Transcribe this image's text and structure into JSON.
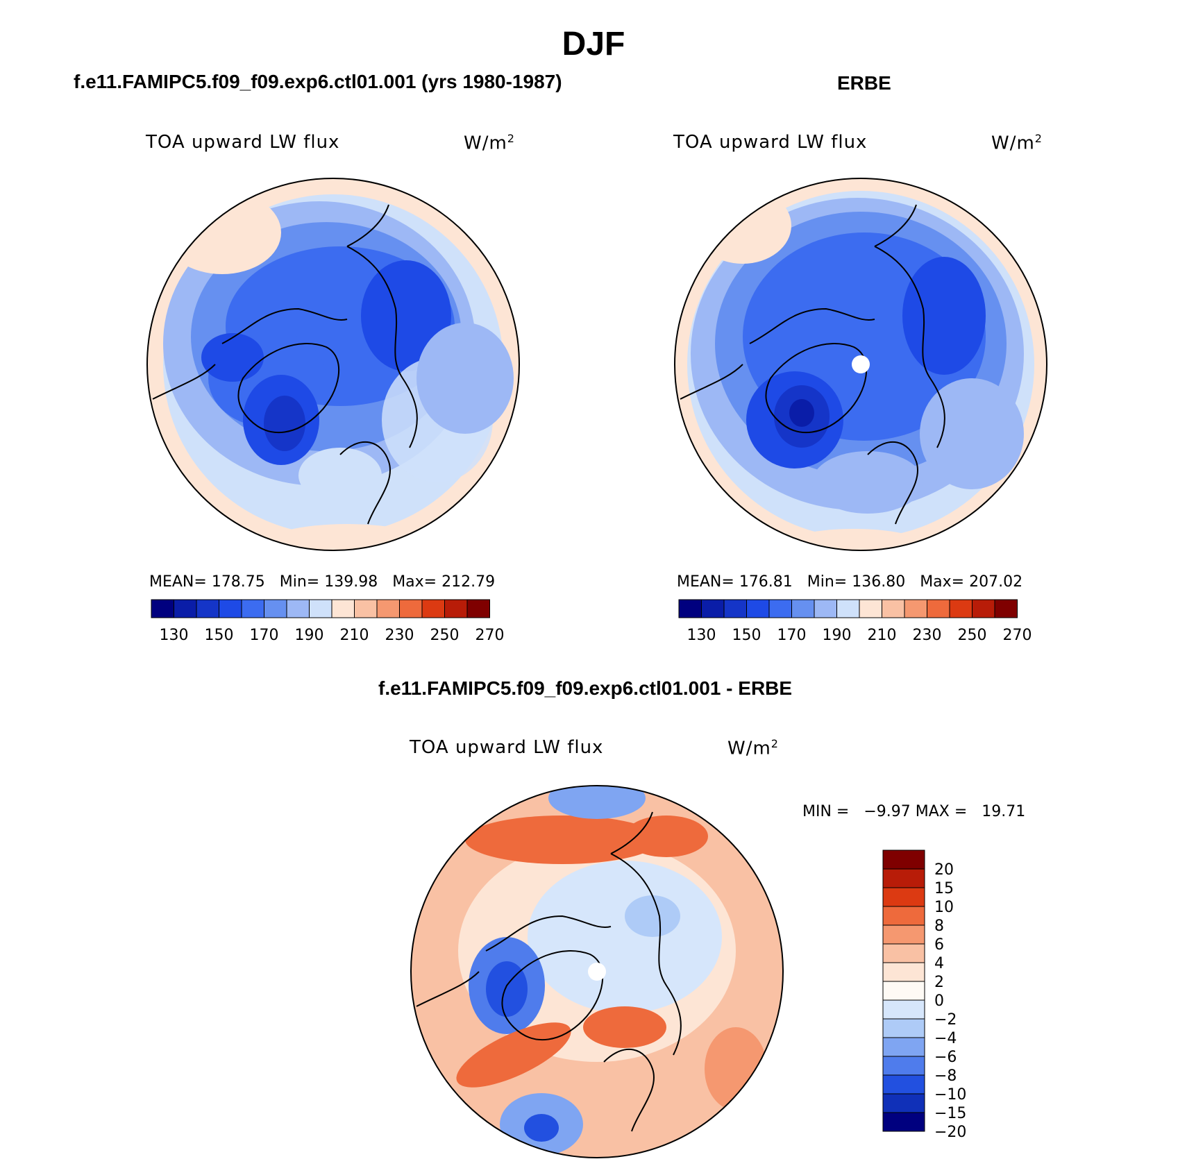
{
  "figure": {
    "title": "DJF"
  },
  "panels": [
    {
      "title": "f.e11.FAMIPC5.f09_f09.exp6.ctl01.001 (yrs 1980-1987)",
      "variable": "TOA upward LW flux",
      "units": "W/m",
      "units_sup": "2",
      "stats": "MEAN= 178.75   Min= 139.98   Max= 212.79"
    },
    {
      "title": "ERBE",
      "variable": "TOA upward LW flux",
      "units": "W/m",
      "units_sup": "2",
      "stats": "MEAN= 176.81   Min= 136.80   Max= 207.02"
    },
    {
      "title": "f.e11.FAMIPC5.f09_f09.exp6.ctl01.001 - ERBE",
      "variable": "TOA upward LW flux",
      "units": "W/m",
      "units_sup": "2",
      "stats": "MIN =   −9.97 MAX =   19.71"
    }
  ],
  "chart_data": [
    {
      "type": "heatmap",
      "projection": "north polar stereographic",
      "mean": 178.75,
      "min": 139.98,
      "max": 212.79,
      "colorbar": {
        "orientation": "horizontal",
        "tick_labels": [
          "130",
          "150",
          "170",
          "190",
          "210",
          "230",
          "250",
          "270"
        ],
        "colors": [
          "#00007f",
          "#0a1da8",
          "#1535c8",
          "#1e4ae6",
          "#3c6cf0",
          "#6690f0",
          "#9db8f5",
          "#cfe1fa",
          "#fde5d5",
          "#f9c1a4",
          "#f59870",
          "#ee6a3c",
          "#dc3a12",
          "#b81c08",
          "#7f0000"
        ]
      }
    },
    {
      "type": "heatmap",
      "projection": "north polar stereographic",
      "mean": 176.81,
      "min": 136.8,
      "max": 207.02,
      "colorbar": {
        "orientation": "horizontal",
        "tick_labels": [
          "130",
          "150",
          "170",
          "190",
          "210",
          "230",
          "250",
          "270"
        ],
        "colors": [
          "#00007f",
          "#0a1da8",
          "#1535c8",
          "#1e4ae6",
          "#3c6cf0",
          "#6690f0",
          "#9db8f5",
          "#cfe1fa",
          "#fde5d5",
          "#f9c1a4",
          "#f59870",
          "#ee6a3c",
          "#dc3a12",
          "#b81c08",
          "#7f0000"
        ]
      }
    },
    {
      "type": "heatmap",
      "projection": "north polar stereographic",
      "min": -9.97,
      "max": 19.71,
      "colorbar": {
        "orientation": "vertical",
        "tick_labels": [
          "20",
          "15",
          "10",
          "8",
          "6",
          "4",
          "2",
          "0",
          "−2",
          "−4",
          "−6",
          "−8",
          "−10",
          "−15",
          "−20"
        ],
        "colors": [
          "#7f0000",
          "#b81c08",
          "#dc3a12",
          "#ee6a3c",
          "#f59870",
          "#f9c1a4",
          "#fde5d5",
          "#fefaf5",
          "#d6e6fb",
          "#aecbf7",
          "#7fa5f2",
          "#4f7cec",
          "#2250e0",
          "#1030b8",
          "#00007f"
        ]
      }
    }
  ]
}
